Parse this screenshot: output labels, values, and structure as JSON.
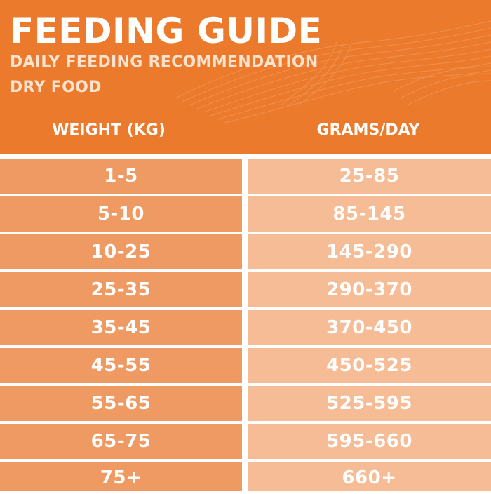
{
  "header": {
    "title": "FEEDING GUIDE",
    "subtitle": "DAILY FEEDING RECOMMENDATION",
    "subtitle2": "DRY FOOD"
  },
  "table": {
    "columns": [
      "WEIGHT (KG)",
      "GRAMS/DAY"
    ],
    "rows": [
      [
        "1-5",
        "25-85"
      ],
      [
        "5-10",
        "85-145"
      ],
      [
        "10-25",
        "145-290"
      ],
      [
        "25-35",
        "290-370"
      ],
      [
        "35-45",
        "370-450"
      ],
      [
        "45-55",
        "450-525"
      ],
      [
        "55-65",
        "525-595"
      ],
      [
        "65-75",
        "595-660"
      ],
      [
        "75+",
        "660+"
      ]
    ]
  },
  "colors": {
    "header_bg": "#ec7a2c",
    "left_cell": "#ef9a63",
    "right_cell": "#f6bc95",
    "text": "#ffffff"
  }
}
